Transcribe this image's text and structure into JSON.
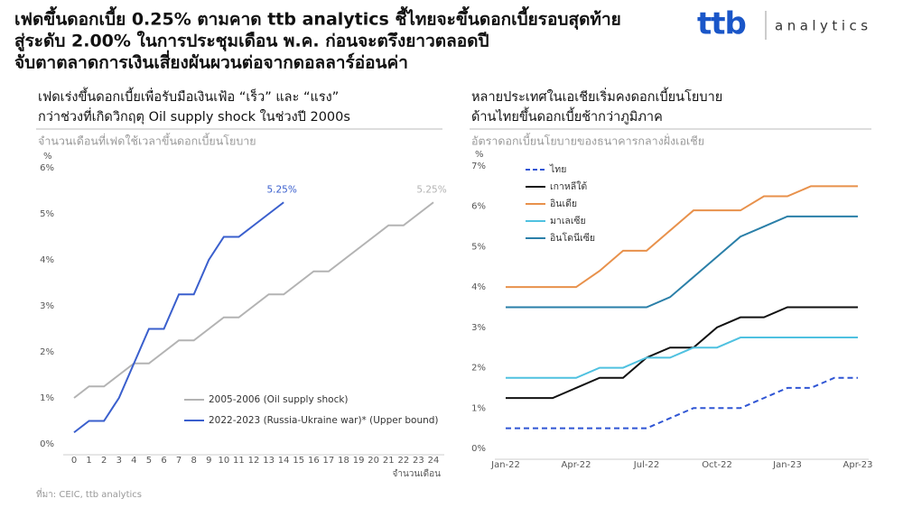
{
  "header": {
    "title_lines": [
      "เฟดขึ้นดอกเบี้ย 0.25% ตามคาด ttb analytics ชี้ไทยจะขึ้นดอกเบี้ยรอบสุดท้าย",
      "สู่ระดับ 2.00% ในการประชุมเดือน พ.ค. ก่อนจะตรึงยาวตลอดปี",
      "จับตาตลาดการเงินเสี่ยงผันผวนต่อจากดอลลาร์อ่อนค่า"
    ],
    "logo_brand": "ttb",
    "logo_text": "analytics"
  },
  "source": "ที่มา: CEIC, ttb analytics",
  "chart_data": [
    {
      "type": "line",
      "title_lines": [
        "เฟดเร่งขึ้นดอกเบี้ยเพื่อรับมือเงินเฟ้อ “เร็ว” และ “แรง”",
        "กว่าช่วงที่เกิดวิกฤตุ Oil supply shock ในช่วงปี 2000s"
      ],
      "subtitle": "จำนวนเดือนที่เฟดใช้เวลาขึ้นดอกเบี้ยนโยบาย",
      "y_label": "%",
      "x_label": "จำนวนเดือน",
      "x": [
        0,
        1,
        2,
        3,
        4,
        5,
        6,
        7,
        8,
        9,
        10,
        11,
        12,
        13,
        14,
        15,
        16,
        17,
        18,
        19,
        20,
        21,
        22,
        23,
        24
      ],
      "xlim": [
        0,
        24
      ],
      "xticks": [
        0,
        1,
        2,
        3,
        4,
        5,
        6,
        7,
        8,
        9,
        10,
        11,
        12,
        13,
        14,
        15,
        16,
        17,
        18,
        19,
        20,
        21,
        22,
        23,
        24
      ],
      "ylim": [
        0,
        6
      ],
      "yticks": [
        {
          "value": 0,
          "label": "0%"
        },
        {
          "value": 1,
          "label": "1%"
        },
        {
          "value": 2,
          "label": "2%"
        },
        {
          "value": 3,
          "label": "3%"
        },
        {
          "value": 4,
          "label": "4%"
        },
        {
          "value": 5,
          "label": "5%"
        },
        {
          "value": 6,
          "label": "6%"
        }
      ],
      "grid": false,
      "legend": "lower center",
      "series": [
        {
          "name": "2005-2006 (Oil supply shock)",
          "color": "#b3b3b3",
          "dash": "solid",
          "values": [
            1.0,
            1.25,
            1.25,
            1.5,
            1.75,
            1.75,
            2.0,
            2.25,
            2.25,
            2.5,
            2.75,
            2.75,
            3.0,
            3.25,
            3.25,
            3.5,
            3.75,
            3.75,
            4.0,
            4.25,
            4.5,
            4.75,
            4.75,
            5.0,
            5.25
          ],
          "value_labels": [
            null,
            null,
            null,
            null,
            null,
            null,
            null,
            null,
            null,
            null,
            null,
            null,
            null,
            null,
            null,
            null,
            null,
            null,
            null,
            null,
            null,
            null,
            null,
            null,
            "5.25%"
          ]
        },
        {
          "name": "2022-2023 (Russia-Ukraine war)* (Upper bound)",
          "color": "#3a5fcd",
          "dash": "solid",
          "values": [
            0.25,
            0.5,
            0.5,
            1.0,
            1.75,
            2.5,
            2.5,
            3.25,
            3.25,
            4.0,
            4.5,
            4.5,
            4.75,
            5.0,
            5.25,
            null,
            null,
            null,
            null,
            null,
            null,
            null,
            null,
            null,
            null
          ],
          "value_labels": [
            null,
            null,
            null,
            null,
            null,
            null,
            null,
            null,
            null,
            null,
            null,
            null,
            null,
            null,
            "5.25%",
            null,
            null,
            null,
            null,
            null,
            null,
            null,
            null,
            null,
            null
          ]
        }
      ]
    },
    {
      "type": "line",
      "title_lines": [
        "หลายประเทศในเอเชียเริ่มคงดอกเบี้ยนโยบาย",
        "ด้านไทยขึ้นดอกเบี้ยช้ากว่าภูมิภาค"
      ],
      "subtitle": "อัตราดอกเบี้ยนโยบายของธนาคารกลางฝั่งเอเชีย",
      "y_label": "%",
      "categories": [
        "Jan-22",
        null,
        null,
        "Apr-22",
        null,
        null,
        "Jul-22",
        null,
        null,
        "Oct-22",
        null,
        null,
        "Jan-23",
        null,
        null,
        "Apr-23"
      ],
      "ylim": [
        0,
        7
      ],
      "yticks": [
        {
          "value": 0,
          "label": "0%"
        },
        {
          "value": 1,
          "label": "1%"
        },
        {
          "value": 2,
          "label": "2%"
        },
        {
          "value": 3,
          "label": "3%"
        },
        {
          "value": 4,
          "label": "4%"
        },
        {
          "value": 5,
          "label": "5%"
        },
        {
          "value": 6,
          "label": "6%"
        },
        {
          "value": 7,
          "label": "7%"
        }
      ],
      "grid": false,
      "legend": "upper left",
      "series": [
        {
          "name": "ไทย",
          "color": "#2f55d4",
          "dash": "dashed",
          "values": [
            0.5,
            0.5,
            0.5,
            0.5,
            0.5,
            0.5,
            0.5,
            0.75,
            1.0,
            1.0,
            1.0,
            1.25,
            1.5,
            1.5,
            1.75,
            1.75
          ]
        },
        {
          "name": "เกาหลีใต้",
          "color": "#111111",
          "dash": "solid",
          "values": [
            1.25,
            1.25,
            1.25,
            1.5,
            1.75,
            1.75,
            2.25,
            2.5,
            2.5,
            3.0,
            3.25,
            3.25,
            3.5,
            3.5,
            3.5,
            3.5
          ]
        },
        {
          "name": "อินเดีย",
          "color": "#e8914b",
          "dash": "solid",
          "values": [
            4.0,
            4.0,
            4.0,
            4.0,
            4.4,
            4.9,
            4.9,
            5.4,
            5.9,
            5.9,
            5.9,
            6.25,
            6.25,
            6.5,
            6.5,
            6.5
          ]
        },
        {
          "name": "มาเลเซีย",
          "color": "#4fc1e0",
          "dash": "solid",
          "values": [
            1.75,
            1.75,
            1.75,
            1.75,
            2.0,
            2.0,
            2.25,
            2.25,
            2.5,
            2.5,
            2.75,
            2.75,
            2.75,
            2.75,
            2.75,
            2.75
          ]
        },
        {
          "name": "อินโดนีเซีย",
          "color": "#2a7fa8",
          "dash": "solid",
          "values": [
            3.5,
            3.5,
            3.5,
            3.5,
            3.5,
            3.5,
            3.5,
            3.75,
            4.25,
            4.75,
            5.25,
            5.5,
            5.75,
            5.75,
            5.75,
            5.75
          ]
        }
      ]
    }
  ]
}
